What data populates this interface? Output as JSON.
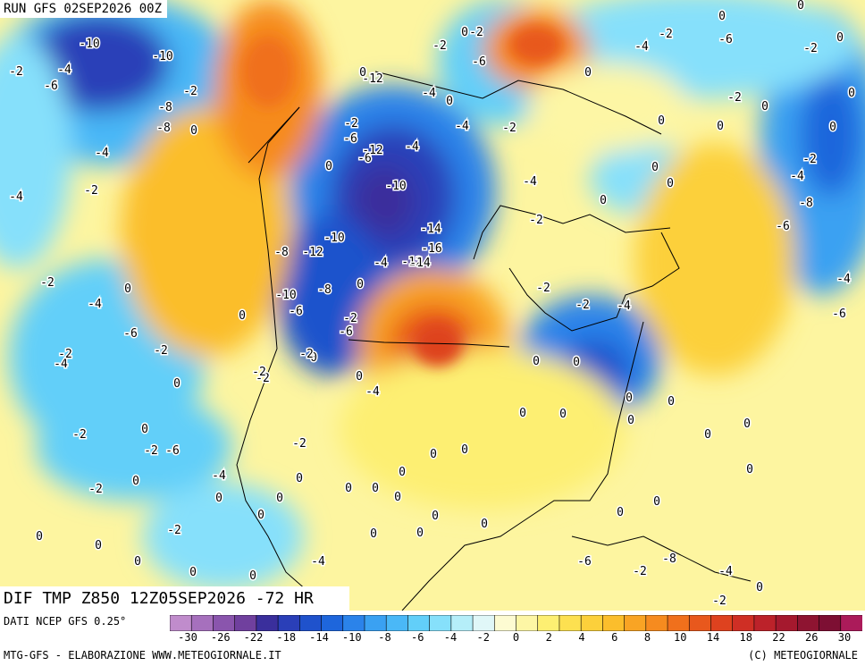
{
  "header": {
    "run_title": "RUN GFS 02SEP2026 00Z",
    "map_title": "DIF TMP Z850 12Z05SEP2026 -72 HR"
  },
  "footer": {
    "data_source": "DATI NCEP GFS 0.25°",
    "credit_left": "MTG-GFS - ELABORAZIONE WWW.METEOGIORNALE.IT",
    "credit_right": "(C) METEOGIORNALE"
  },
  "legend": {
    "colors": [
      "#c08ccc",
      "#a670bd",
      "#8a55ad",
      "#70409e",
      "#3a2f9c",
      "#2a3fb8",
      "#1f52cc",
      "#1e66dc",
      "#2b83ea",
      "#3aa1f2",
      "#4ab8f7",
      "#62cff9",
      "#86e0fb",
      "#b5eef9",
      "#e0f7f8",
      "#fdfbd2",
      "#fdf6a5",
      "#fdef72",
      "#fde050",
      "#fcd03b",
      "#fbbe2c",
      "#f9a424",
      "#f68b1f",
      "#f0701c",
      "#e8581d",
      "#de421f",
      "#cf2f25",
      "#bc222a",
      "#a5192e",
      "#8e1431",
      "#7d0f33",
      "#ab1b5a"
    ],
    "tick_labels": [
      "-30",
      "-26",
      "-22",
      "-18",
      "-14",
      "-10",
      "-8",
      "-6",
      "-4",
      "-2",
      "0",
      "2",
      "4",
      "6",
      "8",
      "10",
      "14",
      "18",
      "22",
      "26",
      "30"
    ]
  },
  "map_labels": [
    "-10",
    "-10",
    "-2",
    "-4",
    "-8",
    "-6",
    "-2",
    "-8",
    "-4",
    "0",
    "-4",
    "-2",
    "0",
    "-2",
    "0",
    "-4",
    "-6",
    "-2",
    "-4",
    "-2",
    "0",
    "-2",
    "0",
    "-2",
    "-6",
    "0",
    "-2",
    "-4",
    "-2",
    "-2",
    "0",
    "-2",
    "0",
    "-4",
    "-2",
    "-6",
    "0",
    "-6",
    "-12",
    "-14",
    "-10",
    "-4",
    "-16",
    "-12",
    "-4",
    "-10",
    "-12",
    "-6",
    "-8",
    "0",
    "-8",
    "-10",
    "-2",
    "-6",
    "-14",
    "-12",
    "0",
    "-2",
    "0",
    "-2",
    "-4",
    "0",
    "-4",
    "-6",
    "-2",
    "-4",
    "-2",
    "-2",
    "-2",
    "-4",
    "-4",
    "-2",
    "-6",
    "0",
    "0",
    "0",
    "-2",
    "0",
    "0",
    "-2",
    "-4",
    "-8",
    "-6",
    "-4",
    "-6",
    "0",
    "-2",
    "0",
    "0",
    "0",
    "0",
    "0",
    "0",
    "0",
    "0",
    "0",
    "0",
    "0",
    "0",
    "0",
    "0",
    "0",
    "0",
    "0",
    "0",
    "0",
    "0",
    "0",
    "0",
    "-2",
    "0",
    "0",
    "0",
    "-2",
    "0",
    "0",
    "0",
    "0",
    "0",
    "-4",
    "-6",
    "-2",
    "-8",
    "-4",
    "-2",
    "0",
    "0",
    "0",
    "0",
    "0",
    "0",
    "0",
    "0"
  ]
}
